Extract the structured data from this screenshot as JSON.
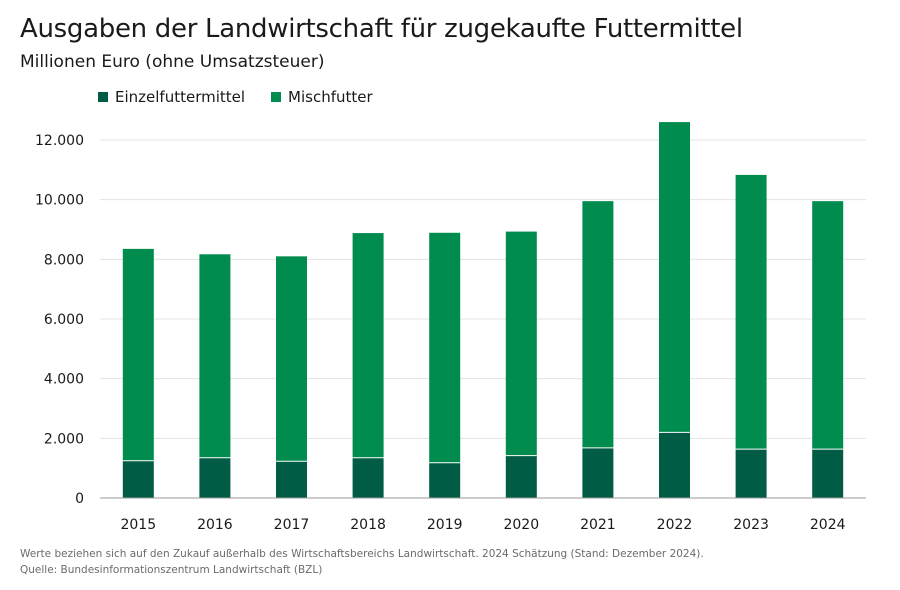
{
  "title": "Ausgaben der Landwirtschaft für zugekaufte Futtermittel",
  "subtitle": "Millionen Euro (ohne Umsatzsteuer)",
  "legend": [
    {
      "label": "Einzelfuttermittel",
      "color": "#005c45"
    },
    {
      "label": "Mischfutter",
      "color": "#008c4f"
    }
  ],
  "footnote": {
    "note": "Werte beziehen sich auf den Zukauf außerhalb des Wirtschaftsbereichs Landwirtschaft. 2024 Schätzung (Stand: Dezember 2024).",
    "source": "Quelle: Bundesinformationszentrum Landwirtschaft (BZL)"
  },
  "chart_data": {
    "type": "bar",
    "stacked": true,
    "title": "Ausgaben der Landwirtschaft für zugekaufte Futtermittel",
    "subtitle": "Millionen Euro (ohne Umsatzsteuer)",
    "categories": [
      "2015",
      "2016",
      "2017",
      "2018",
      "2019",
      "2020",
      "2021",
      "2022",
      "2023",
      "2024"
    ],
    "series": [
      {
        "name": "Einzelfuttermittel",
        "color": "#005c45",
        "values": [
          1250,
          1350,
          1230,
          1350,
          1180,
          1420,
          1680,
          2200,
          1640,
          1640
        ]
      },
      {
        "name": "Mischfutter",
        "color": "#008c4f",
        "values": [
          7100,
          6820,
          6870,
          7530,
          7710,
          7510,
          8270,
          10400,
          9190,
          8310
        ]
      }
    ],
    "yticks": [
      0,
      2000,
      4000,
      6000,
      8000,
      10000,
      12000
    ],
    "ytick_labels": [
      "0",
      "2.000",
      "4.000",
      "6.000",
      "8.000",
      "10.000",
      "12.000"
    ],
    "ylim": [
      0,
      12000
    ],
    "xlabel": "",
    "ylabel": "",
    "grid": true,
    "legend_position": "top-left"
  }
}
